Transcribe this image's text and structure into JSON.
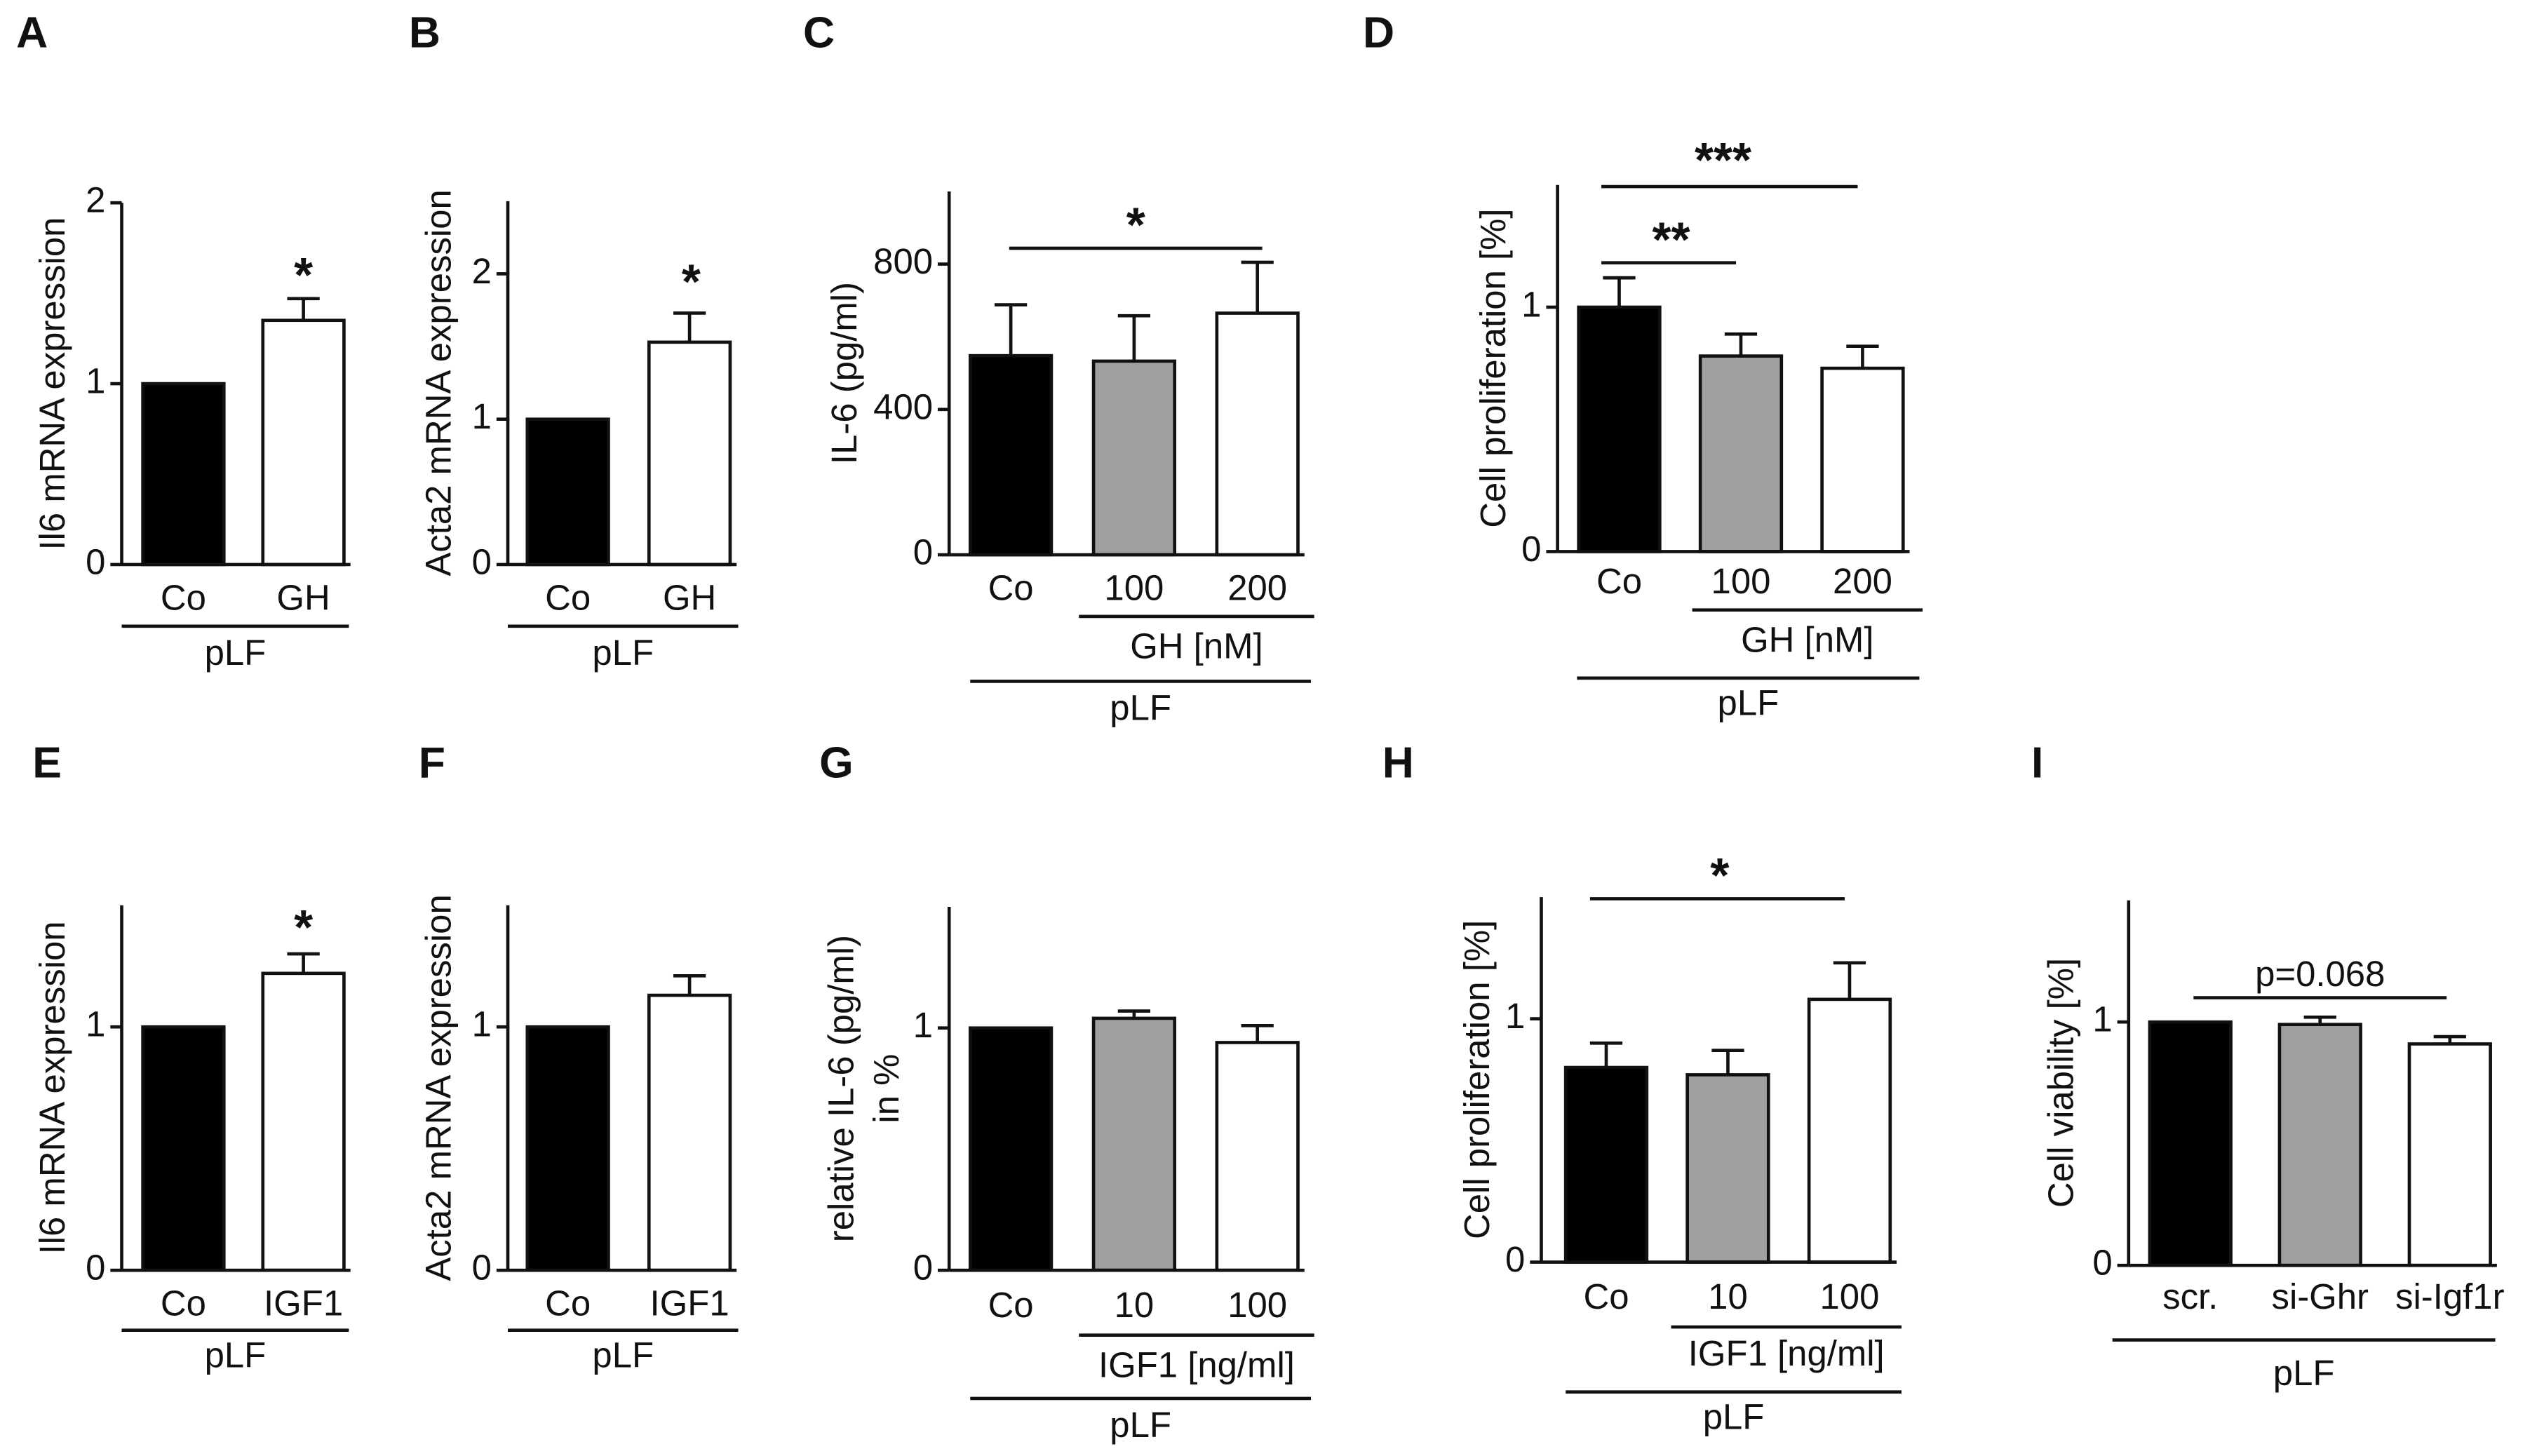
{
  "chart_data": [
    {
      "type": "bar",
      "panel": "A",
      "ylabel": "Il6 mRNA expression",
      "categories": [
        "Co",
        "GH"
      ],
      "values": [
        1,
        1.35
      ],
      "errors": [
        null,
        0.12
      ],
      "colors": [
        "#000000",
        "#ffffff"
      ],
      "ylim": [
        0,
        2
      ],
      "yticks": [
        0,
        1,
        2
      ],
      "annotations": [
        "*"
      ],
      "groups": [
        "pLF"
      ]
    },
    {
      "type": "bar",
      "panel": "B",
      "ylabel": "Acta2 mRNA expression",
      "categories": [
        "Co",
        "GH"
      ],
      "values": [
        1,
        1.53
      ],
      "errors": [
        null,
        0.2
      ],
      "colors": [
        "#000000",
        "#ffffff"
      ],
      "ylim": [
        0,
        2.5
      ],
      "yticks": [
        0,
        1,
        2
      ],
      "annotations": [
        "*"
      ],
      "groups": [
        "pLF"
      ]
    },
    {
      "type": "bar",
      "panel": "C",
      "ylabel": "IL-6 (pg/ml)",
      "categories": [
        "Co",
        "100",
        "200"
      ],
      "values": [
        548,
        533,
        665
      ],
      "errors": [
        140,
        125,
        140
      ],
      "colors": [
        "#000000",
        "#a0a0a0",
        "#ffffff"
      ],
      "ylim": [
        0,
        1000
      ],
      "yticks": [
        0,
        400,
        800
      ],
      "annotations": [
        "*"
      ],
      "groups": [
        "GH [nM]",
        "pLF"
      ]
    },
    {
      "type": "bar",
      "panel": "D",
      "ylabel": "Cell proliferation [%]",
      "categories": [
        "Co",
        "100",
        "200"
      ],
      "values": [
        1.0,
        0.8,
        0.75
      ],
      "errors": [
        0.12,
        0.09,
        0.09
      ],
      "colors": [
        "#000000",
        "#a0a0a0",
        "#ffffff"
      ],
      "ylim": [
        0,
        1.5
      ],
      "yticks": [
        0,
        1
      ],
      "annotations": [
        "**",
        "***"
      ],
      "groups": [
        "GH [nM]",
        "pLF"
      ]
    },
    {
      "type": "bar",
      "panel": "E",
      "ylabel": "Il6 mRNA expression",
      "categories": [
        "Co",
        "IGF1"
      ],
      "values": [
        1,
        1.22
      ],
      "errors": [
        null,
        0.08
      ],
      "colors": [
        "#000000",
        "#ffffff"
      ],
      "ylim": [
        0,
        1.5
      ],
      "yticks": [
        0,
        1
      ],
      "annotations": [
        "*"
      ],
      "groups": [
        "pLF"
      ]
    },
    {
      "type": "bar",
      "panel": "F",
      "ylabel": "Acta2 mRNA expression",
      "categories": [
        "Co",
        "IGF1"
      ],
      "values": [
        1,
        1.13
      ],
      "errors": [
        null,
        0.08
      ],
      "colors": [
        "#000000",
        "#ffffff"
      ],
      "ylim": [
        0,
        1.5
      ],
      "yticks": [
        0,
        1
      ],
      "annotations": [],
      "groups": [
        "pLF"
      ]
    },
    {
      "type": "bar",
      "panel": "G",
      "ylabel": [
        "relative IL-6 (pg/ml)",
        "in %"
      ],
      "categories": [
        "Co",
        "10",
        "100"
      ],
      "values": [
        1.0,
        1.04,
        0.94
      ],
      "errors": [
        null,
        0.03,
        0.07
      ],
      "colors": [
        "#000000",
        "#a0a0a0",
        "#ffffff"
      ],
      "ylim": [
        0,
        1.5
      ],
      "yticks": [
        0,
        1
      ],
      "annotations": [],
      "groups": [
        "IGF1 [ng/ml]",
        "pLF"
      ]
    },
    {
      "type": "bar",
      "panel": "H",
      "ylabel": "Cell proliferation [%]",
      "categories": [
        "Co",
        "10",
        "100"
      ],
      "values": [
        0.8,
        0.77,
        1.08
      ],
      "errors": [
        0.1,
        0.1,
        0.15
      ],
      "colors": [
        "#000000",
        "#a0a0a0",
        "#ffffff"
      ],
      "ylim": [
        0,
        1.5
      ],
      "yticks": [
        0,
        1
      ],
      "annotations": [
        "*"
      ],
      "groups": [
        "IGF1 [ng/ml]",
        "pLF"
      ]
    },
    {
      "type": "bar",
      "panel": "I",
      "ylabel": "Cell viability [%]",
      "categories": [
        "scr.",
        "si-Ghr",
        "si-Igf1r"
      ],
      "values": [
        1.0,
        0.99,
        0.91
      ],
      "errors": [
        null,
        0.03,
        0.03
      ],
      "colors": [
        "#000000",
        "#a0a0a0",
        "#ffffff"
      ],
      "ylim": [
        0,
        1.5
      ],
      "yticks": [
        0,
        1
      ],
      "annotations": [
        "p=0.068"
      ],
      "groups": [
        "pLF"
      ]
    }
  ]
}
